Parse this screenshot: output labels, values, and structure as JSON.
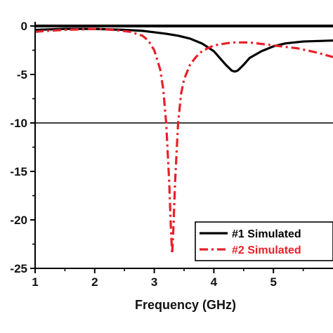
{
  "chart_data": {
    "type": "line",
    "title": "",
    "xlabel": "Frequency (GHz)",
    "ylabel": "",
    "xlim": [
      1,
      6
    ],
    "ylim": [
      -25,
      0
    ],
    "x_ticks": [
      1,
      2,
      3,
      4,
      5
    ],
    "y_ticks": [
      0,
      -5,
      -10,
      -15,
      -20,
      -25
    ],
    "x_tick_labels": [
      "1",
      "2",
      "3",
      "4",
      "5"
    ],
    "y_tick_labels": [
      "0",
      "-5",
      "-10",
      "-15",
      "-20",
      "-25"
    ],
    "reference_lines": [
      0,
      -10
    ],
    "grid": false,
    "legend_position": "bottom-right",
    "series": [
      {
        "name": "#1 Simulated",
        "color": "#000000",
        "style": "solid",
        "x": [
          1.0,
          1.5,
          2.0,
          2.5,
          2.8,
          3.0,
          3.2,
          3.4,
          3.6,
          3.8,
          4.0,
          4.1,
          4.2,
          4.3,
          4.35,
          4.4,
          4.5,
          4.6,
          4.8,
          5.0,
          5.2,
          5.5,
          6.0
        ],
        "y": [
          -0.4,
          -0.3,
          -0.3,
          -0.4,
          -0.5,
          -0.65,
          -0.8,
          -1.0,
          -1.3,
          -1.8,
          -2.6,
          -3.3,
          -4.0,
          -4.6,
          -4.7,
          -4.6,
          -4.0,
          -3.3,
          -2.6,
          -2.1,
          -1.8,
          -1.6,
          -1.5
        ]
      },
      {
        "name": "#2 Simulated",
        "color": "#e8202a",
        "style": "dash-dot",
        "x": [
          1.0,
          1.2,
          1.5,
          2.0,
          2.3,
          2.6,
          2.8,
          2.9,
          3.0,
          3.1,
          3.15,
          3.2,
          3.25,
          3.28,
          3.3,
          3.32,
          3.35,
          3.4,
          3.45,
          3.5,
          3.6,
          3.7,
          3.8,
          4.0,
          4.3,
          4.6,
          5.0,
          5.4,
          5.7,
          6.0
        ],
        "y": [
          -0.6,
          -0.5,
          -0.4,
          -0.3,
          -0.4,
          -0.6,
          -1.0,
          -1.5,
          -2.5,
          -4.5,
          -6.5,
          -10.0,
          -16.0,
          -21.0,
          -23.5,
          -21.0,
          -16.0,
          -10.0,
          -7.0,
          -5.5,
          -4.0,
          -3.2,
          -2.6,
          -2.0,
          -1.7,
          -1.7,
          -2.0,
          -2.3,
          -2.7,
          -3.2
        ]
      }
    ],
    "legend": {
      "entries": [
        "#1 Simulated",
        "#2 Simulated"
      ],
      "colors": [
        "#000000",
        "#e8202a"
      ]
    }
  }
}
